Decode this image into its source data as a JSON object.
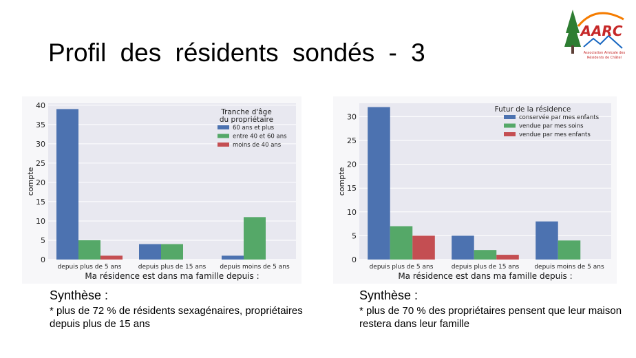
{
  "slide": {
    "title": "Profil des résidents sondés - 3",
    "logo": {
      "text": "AARC",
      "subtitle_lines": [
        "Association Amicale des",
        "Résidents de Châtel"
      ]
    }
  },
  "chart_data": [
    {
      "type": "bar",
      "title": "",
      "xlabel": "Ma résidence est dans ma famille depuis :",
      "ylabel": "compte",
      "ylim": [
        0,
        40.5
      ],
      "yticks": [
        0,
        5,
        10,
        15,
        20,
        25,
        30,
        35,
        40
      ],
      "grid": true,
      "categories": [
        "depuis plus de 5 ans",
        "depuis plus de 15 ans",
        "depuis moins de 5 ans"
      ],
      "legend": {
        "title_lines": [
          "Tranche d'âge",
          "du propriétaire"
        ],
        "placement": "top-right"
      },
      "series": [
        {
          "name": "60 ans et plus",
          "color": "#4c72b0",
          "values": [
            39,
            4,
            1
          ]
        },
        {
          "name": "entre 40 et 60 ans",
          "color": "#55a868",
          "values": [
            5,
            4,
            11
          ]
        },
        {
          "name": "moins de 40 ans",
          "color": "#c44e52",
          "values": [
            1,
            0,
            0
          ]
        }
      ]
    },
    {
      "type": "bar",
      "title": "",
      "xlabel": "Ma résidence est dans ma famille depuis :",
      "ylabel": "compte",
      "ylim": [
        0,
        32.8
      ],
      "yticks": [
        0,
        5,
        10,
        15,
        20,
        25,
        30
      ],
      "grid": true,
      "categories": [
        "depuis plus de 5 ans",
        "depuis plus de 15 ans",
        "depuis moins de 5 ans"
      ],
      "legend": {
        "title_lines": [
          "Futur de la résidence"
        ],
        "placement": "top-right"
      },
      "series": [
        {
          "name": "conservée par mes enfants",
          "color": "#4c72b0",
          "values": [
            32,
            5,
            8
          ]
        },
        {
          "name": "vendue par mes soins",
          "color": "#55a868",
          "values": [
            7,
            2,
            4
          ]
        },
        {
          "name": "vendue par mes enfants",
          "color": "#c44e52",
          "values": [
            5,
            1,
            0
          ]
        }
      ]
    }
  ],
  "synthese": [
    {
      "heading": "Synthèse :",
      "line1": "* plus de 72 % de résidents sexagénaires, propriétaires",
      "line2": "depuis plus de 15 ans"
    },
    {
      "heading": "Synthèse :",
      "line1": "* plus de 70 % des propriétaires pensent que leur maison",
      "line2": "restera dans leur famille"
    }
  ]
}
